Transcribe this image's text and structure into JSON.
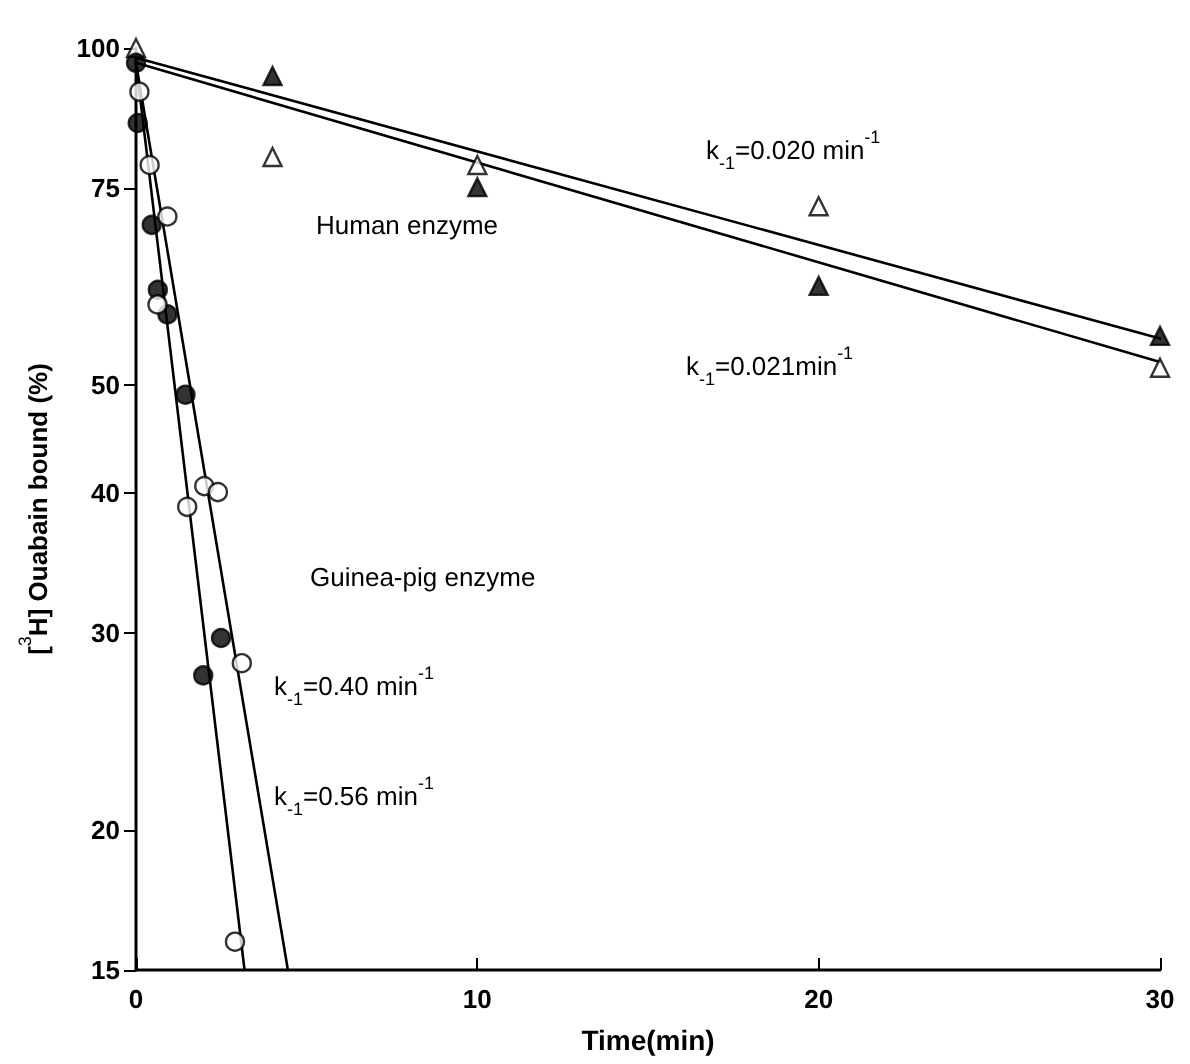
{
  "chart_data": {
    "type": "scatter",
    "xlabel": "Time(min)",
    "ylabel": "[$^{3}$H] Ouabain bound (%)",
    "xlim": [
      0,
      30
    ],
    "xticks": [
      0,
      10,
      20,
      30
    ],
    "ylim": [
      15,
      100
    ],
    "yticks": [
      15,
      20,
      30,
      40,
      50,
      75,
      100
    ],
    "log": "y",
    "grid": false,
    "series": [
      {
        "marker": "triangle",
        "color": "#000000",
        "x": [
          4,
          10,
          20,
          30
        ],
        "values": [
          94.4,
          75.1,
          61.3,
          55.3
        ]
      },
      {
        "marker": "triangle",
        "color": "#ffffff",
        "x": [
          0,
          4,
          10,
          20,
          30
        ],
        "values": [
          100,
          79.9,
          78.6,
          72.2,
          51.8
        ]
      },
      {
        "marker": "circle",
        "color": "#000000",
        "x": [
          0,
          0.05,
          0.46,
          0.64,
          0.92,
          1.45,
          1.97,
          2.49
        ],
        "values": [
          97,
          85.7,
          69.5,
          60.8,
          57.8,
          49,
          27.5,
          29.7
        ]
      },
      {
        "marker": "circle",
        "color": "#ffffff",
        "x": [
          0.1,
          0.4,
          0.63,
          0.92,
          1.5,
          2,
          2.4,
          2.9,
          3.1
        ],
        "values": [
          91.4,
          78.6,
          59,
          70.7,
          38.9,
          40.6,
          40.1,
          15.9,
          28.2
        ]
      },
      {
        "type": "line",
        "marker": "none",
        "line_style": "solid",
        "color": "#000000",
        "x": [
          0,
          30
        ],
        "values": [
          98,
          55
        ]
      },
      {
        "type": "line",
        "marker": "none",
        "line_style": "solid",
        "color": "#000000",
        "x": [
          0,
          30
        ],
        "values": [
          97,
          52.4
        ]
      },
      {
        "type": "line",
        "marker": "none",
        "line_style": "solid",
        "color": "#000000",
        "x": [
          0,
          3.18
        ],
        "values": [
          97,
          15
        ]
      },
      {
        "type": "line",
        "marker": "none",
        "line_style": "solid",
        "color": "#000000",
        "x": [
          0,
          4.45
        ],
        "values": [
          97,
          15
        ]
      }
    ],
    "annotations": [
      "Human enzyme",
      "Guinea-pig enzyme",
      "k$_{-1}$=0.020 min$^{-1}$",
      "k$_{-1}$=0.021min$^{-1}$",
      "k$_{-1}$=0.40 min$^{-1}$",
      "k$_{-1}$=0.56 min$^{-1}$"
    ]
  }
}
